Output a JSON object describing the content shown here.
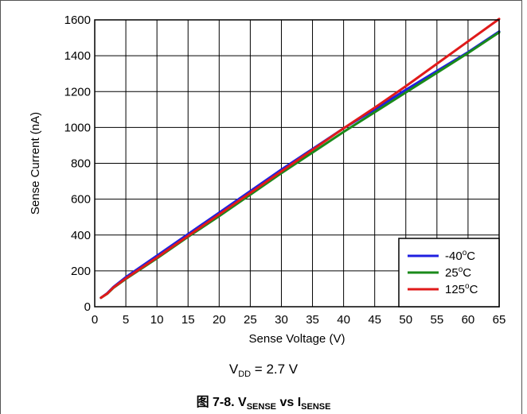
{
  "chart_data": {
    "type": "line",
    "xlabel": "Sense Voltage (V)",
    "ylabel": "Sense Current (nA)",
    "xlim": [
      0,
      65
    ],
    "ylim": [
      0,
      1600
    ],
    "x_ticks": [
      0,
      5,
      10,
      15,
      20,
      25,
      30,
      35,
      40,
      45,
      50,
      55,
      60,
      65
    ],
    "y_ticks": [
      0,
      200,
      400,
      600,
      800,
      1000,
      1200,
      1400,
      1600
    ],
    "grid": true,
    "legend_position": "bottom-right",
    "series": [
      {
        "name": "-40°C",
        "label_base": "-40",
        "label_sup": "o",
        "label_unit": "C",
        "color": "#1f1fe0",
        "x": [
          1,
          2,
          3,
          5,
          10,
          15,
          20,
          25,
          30,
          35,
          40,
          45,
          50,
          55,
          60,
          65
        ],
        "y": [
          50,
          75,
          110,
          165,
          285,
          405,
          525,
          645,
          765,
          880,
          995,
          1100,
          1210,
          1315,
          1420,
          1535
        ]
      },
      {
        "name": "25°C",
        "label_base": "25",
        "label_sup": "o",
        "label_unit": "C",
        "color": "#1a8a1a",
        "x": [
          1,
          2,
          3,
          5,
          10,
          15,
          20,
          25,
          30,
          35,
          40,
          45,
          50,
          55,
          60,
          65
        ],
        "y": [
          50,
          72,
          105,
          155,
          270,
          390,
          505,
          625,
          745,
          860,
          975,
          1085,
          1195,
          1305,
          1415,
          1530
        ]
      },
      {
        "name": "125°C",
        "label_base": "125",
        "label_sup": "o",
        "label_unit": "C",
        "color": "#e01a1a",
        "x": [
          1,
          2,
          3,
          5,
          10,
          15,
          20,
          25,
          30,
          35,
          40,
          45,
          50,
          55,
          60,
          65
        ],
        "y": [
          50,
          73,
          107,
          158,
          275,
          395,
          515,
          635,
          755,
          875,
          995,
          1110,
          1230,
          1355,
          1480,
          1605
        ]
      }
    ]
  },
  "note": {
    "base": "V",
    "sub": "DD",
    "rest": " = 2.7 V"
  },
  "caption": {
    "prefix": "图 7-8. V",
    "sub1": "SENSE",
    "mid": " vs I",
    "sub2": "SENSE"
  }
}
